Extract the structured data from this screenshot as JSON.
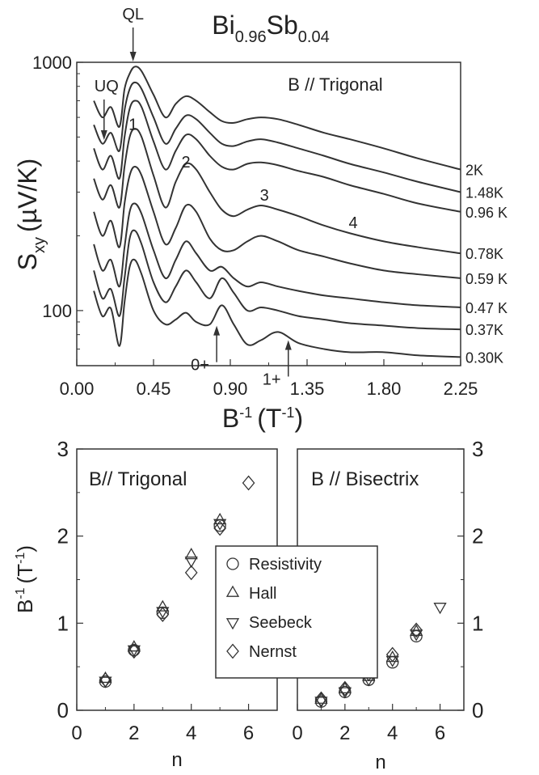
{
  "chart_data": [
    {
      "type": "line",
      "title": "Bi0.96Sb0.04",
      "title_parts": {
        "base1": "Bi",
        "sub1": "0.96",
        "base2": "Sb",
        "sub2": "0.04"
      },
      "annotation": "B // Trigonal",
      "xlabel": {
        "base": "B",
        "sup": "-1",
        "unit": "(T",
        "unit_sup": "-1",
        "close": ")"
      },
      "ylabel": {
        "base": "S",
        "sub": "xy",
        "unit": "(µV/K)"
      },
      "xlim": [
        0,
        2.25
      ],
      "y_scale": "log",
      "x_ticks": [
        "0.00",
        "0.45",
        "0.90",
        "1.35",
        "1.80",
        "2.25"
      ],
      "y_ticks": [
        "100",
        "1000"
      ],
      "line_color": "#333333",
      "series": [
        {
          "name": "2K",
          "x": [
            0.1,
            0.15,
            0.2,
            0.25,
            0.28,
            0.31,
            0.34,
            0.38,
            0.45,
            0.52,
            0.58,
            0.64,
            0.7,
            0.78,
            0.85,
            0.92,
            1.0,
            1.08,
            1.18,
            1.3,
            1.45,
            1.6,
            1.8,
            2.0,
            2.25
          ],
          "y": [
            700,
            600,
            660,
            550,
            780,
            900,
            960,
            920,
            740,
            600,
            680,
            730,
            700,
            630,
            580,
            570,
            590,
            600,
            590,
            560,
            520,
            490,
            450,
            410,
            370
          ]
        },
        {
          "name": "1.48K",
          "x": [
            0.1,
            0.15,
            0.2,
            0.25,
            0.28,
            0.31,
            0.34,
            0.38,
            0.45,
            0.52,
            0.58,
            0.64,
            0.7,
            0.78,
            0.85,
            0.92,
            1.0,
            1.08,
            1.18,
            1.3,
            1.45,
            1.6,
            1.8,
            2.0,
            2.25
          ],
          "y": [
            560,
            470,
            520,
            440,
            640,
            780,
            830,
            780,
            600,
            470,
            540,
            610,
            590,
            520,
            470,
            460,
            480,
            490,
            475,
            450,
            420,
            390,
            360,
            330,
            300
          ]
        },
        {
          "name": "0.96 K",
          "x": [
            0.1,
            0.15,
            0.2,
            0.25,
            0.28,
            0.31,
            0.34,
            0.38,
            0.45,
            0.52,
            0.58,
            0.64,
            0.7,
            0.78,
            0.85,
            0.92,
            1.0,
            1.08,
            1.18,
            1.3,
            1.45,
            1.6,
            1.8,
            2.0,
            2.25
          ],
          "y": [
            450,
            370,
            420,
            340,
            500,
            650,
            700,
            660,
            480,
            370,
            440,
            510,
            490,
            420,
            380,
            370,
            390,
            395,
            385,
            365,
            345,
            320,
            295,
            270,
            250
          ]
        },
        {
          "name": "0.78K",
          "x": [
            0.1,
            0.15,
            0.2,
            0.25,
            0.28,
            0.31,
            0.34,
            0.38,
            0.45,
            0.52,
            0.58,
            0.64,
            0.7,
            0.78,
            0.85,
            0.92,
            1.0,
            1.08,
            1.18,
            1.3,
            1.45,
            1.6,
            1.8,
            2.0,
            2.25
          ],
          "y": [
            340,
            280,
            320,
            260,
            380,
            500,
            540,
            500,
            350,
            260,
            330,
            390,
            370,
            300,
            255,
            240,
            255,
            265,
            255,
            240,
            220,
            205,
            190,
            180,
            170
          ]
        },
        {
          "name": "0.59 K",
          "x": [
            0.1,
            0.15,
            0.2,
            0.25,
            0.28,
            0.31,
            0.34,
            0.38,
            0.45,
            0.52,
            0.58,
            0.64,
            0.7,
            0.78,
            0.85,
            0.92,
            1.0,
            1.08,
            1.18,
            1.3,
            1.45,
            1.6,
            1.8,
            2.0,
            2.25
          ],
          "y": [
            250,
            200,
            230,
            180,
            270,
            350,
            380,
            350,
            250,
            185,
            215,
            265,
            250,
            195,
            175,
            175,
            190,
            200,
            190,
            175,
            165,
            155,
            145,
            140,
            135
          ]
        },
        {
          "name": "0.47 K",
          "x": [
            0.1,
            0.15,
            0.2,
            0.25,
            0.28,
            0.31,
            0.34,
            0.38,
            0.45,
            0.52,
            0.58,
            0.64,
            0.7,
            0.78,
            0.85,
            0.92,
            1.0,
            1.08,
            1.18,
            1.3,
            1.45,
            1.6,
            1.8,
            2.0,
            2.25
          ],
          "y": [
            185,
            145,
            160,
            125,
            180,
            250,
            270,
            245,
            175,
            135,
            160,
            190,
            170,
            145,
            150,
            135,
            125,
            130,
            125,
            120,
            115,
            112,
            108,
            105,
            103
          ]
        },
        {
          "name": "0.37K",
          "x": [
            0.1,
            0.15,
            0.2,
            0.25,
            0.28,
            0.31,
            0.34,
            0.38,
            0.45,
            0.52,
            0.58,
            0.64,
            0.7,
            0.78,
            0.85,
            0.92,
            1.0,
            1.08,
            1.18,
            1.3,
            1.45,
            1.6,
            1.8,
            2.0,
            2.25
          ],
          "y": [
            145,
            112,
            122,
            95,
            135,
            195,
            210,
            185,
            130,
            108,
            125,
            145,
            130,
            112,
            135,
            118,
            100,
            103,
            100,
            95,
            92,
            89,
            87,
            85,
            84
          ]
        },
        {
          "name": "0.30K",
          "x": [
            0.1,
            0.15,
            0.2,
            0.25,
            0.28,
            0.31,
            0.34,
            0.38,
            0.45,
            0.52,
            0.58,
            0.64,
            0.7,
            0.78,
            0.85,
            0.92,
            1.0,
            1.08,
            1.18,
            1.3,
            1.45,
            1.6,
            1.8,
            2.0,
            2.25
          ],
          "y": [
            120,
            95,
            102,
            72,
            108,
            150,
            160,
            140,
            100,
            88,
            92,
            98,
            90,
            88,
            105,
            88,
            73,
            76,
            82,
            74,
            70,
            68,
            68,
            66,
            65
          ]
        }
      ],
      "markers": [
        {
          "text": "QL",
          "arrow": true,
          "x": 0.33,
          "y": 1000
        },
        {
          "text": "UQ",
          "arrow": true,
          "x": 0.16,
          "y": 560
        },
        {
          "text": "1",
          "x": 0.33,
          "y": 560
        },
        {
          "text": "2",
          "x": 0.64,
          "y": 395
        },
        {
          "text": "3",
          "x": 1.1,
          "y": 290
        },
        {
          "text": "4",
          "x": 1.62,
          "y": 225
        },
        {
          "text": "0+",
          "arrow": true,
          "x": 0.82,
          "y": 80
        },
        {
          "text": "1+",
          "arrow": true,
          "x": 1.24,
          "y": 70
        }
      ]
    },
    {
      "type": "scatter",
      "annotation": "B// Trigonal",
      "xlabel": "n",
      "ylabel": {
        "base": "B",
        "sup": "-1",
        "unit": "(T",
        "unit_sup": "-1",
        "close": ")"
      },
      "xlim": [
        0,
        7
      ],
      "ylim": [
        0,
        3
      ],
      "x_ticks": [
        "0",
        "2",
        "4",
        "6"
      ],
      "y_ticks": [
        "0",
        "1",
        "2",
        "3"
      ],
      "series": [
        {
          "name": "Resistivity",
          "marker": "circle",
          "x": [
            1,
            2,
            3,
            5
          ],
          "y": [
            0.33,
            0.69,
            1.12,
            2.12
          ]
        },
        {
          "name": "Hall",
          "marker": "triangle-up",
          "x": [
            1,
            2,
            3,
            4,
            5
          ],
          "y": [
            0.36,
            0.72,
            1.18,
            1.78,
            2.18
          ]
        },
        {
          "name": "Seebeck",
          "marker": "triangle-down",
          "x": [
            1,
            2,
            3,
            4,
            5
          ],
          "y": [
            0.34,
            0.7,
            1.14,
            1.72,
            2.15
          ]
        },
        {
          "name": "Nernst",
          "marker": "diamond",
          "x": [
            1,
            2,
            3,
            4,
            5,
            6
          ],
          "y": [
            0.35,
            0.68,
            1.1,
            1.58,
            2.09,
            2.61
          ]
        }
      ]
    },
    {
      "type": "scatter",
      "annotation": "B // Bisectrix",
      "xlabel": "n",
      "xlim": [
        0,
        7
      ],
      "ylim": [
        0,
        3
      ],
      "x_ticks": [
        "0",
        "2",
        "4",
        "6"
      ],
      "y_ticks": [
        "0",
        "1",
        "2",
        "3"
      ],
      "series": [
        {
          "name": "Resistivity",
          "marker": "circle",
          "x": [
            1,
            2,
            3,
            4,
            5
          ],
          "y": [
            0.1,
            0.21,
            0.35,
            0.55,
            0.85
          ]
        },
        {
          "name": "Hall",
          "marker": "triangle-up",
          "x": [
            1,
            2,
            3,
            4,
            5
          ],
          "y": [
            0.12,
            0.24,
            0.38,
            0.6,
            0.9
          ]
        },
        {
          "name": "Seebeck",
          "marker": "triangle-down",
          "x": [
            1,
            2,
            3,
            4,
            5,
            6
          ],
          "y": [
            0.11,
            0.22,
            0.36,
            0.58,
            0.88,
            1.19
          ]
        },
        {
          "name": "Nernst",
          "marker": "diamond",
          "x": [
            1,
            2,
            3,
            4,
            5
          ],
          "y": [
            0.13,
            0.25,
            0.42,
            0.64,
            0.92
          ]
        }
      ]
    }
  ],
  "legend": {
    "items": [
      {
        "label": "Resistivity",
        "marker": "circle"
      },
      {
        "label": "Hall",
        "marker": "triangle-up"
      },
      {
        "label": "Seebeck",
        "marker": "triangle-down"
      },
      {
        "label": "Nernst",
        "marker": "diamond"
      }
    ]
  }
}
